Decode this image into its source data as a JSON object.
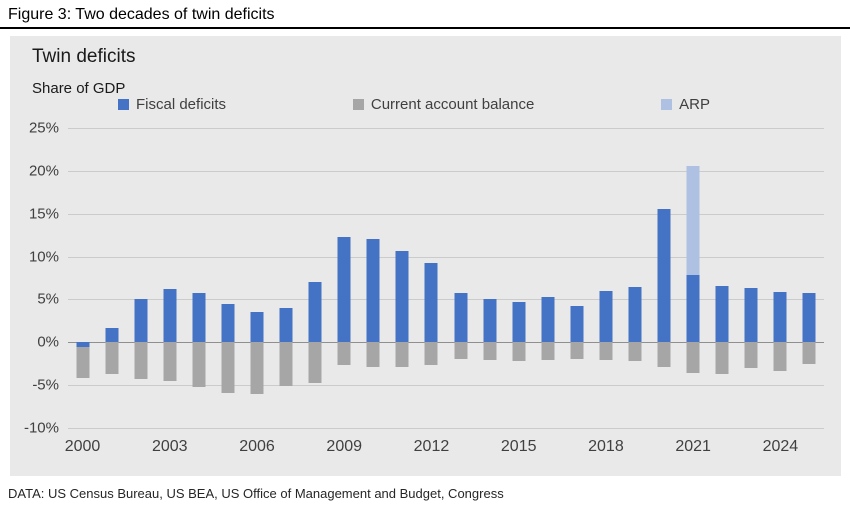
{
  "figure": {
    "caption": "Figure 3: Two decades of twin deficits",
    "source": "DATA: US Census Bureau, US BEA, US Office of Management and Budget, Congress"
  },
  "chart": {
    "title": "Twin deficits",
    "subtitle": "Share of GDP",
    "background": "#e9e9e9",
    "legend": [
      {
        "label": "Fiscal deficits",
        "color": "#4472c4"
      },
      {
        "label": "Current account balance",
        "color": "#a6a6a6"
      },
      {
        "label": "ARP",
        "color": "#aec1e3"
      }
    ]
  },
  "chart_data": {
    "type": "bar",
    "title": "Twin deficits",
    "subtitle": "Share of GDP",
    "xlabel": "",
    "ylabel": "Share of GDP",
    "ylim": [
      -10,
      25
    ],
    "yticks": [
      25,
      20,
      15,
      10,
      5,
      0,
      -5,
      -10
    ],
    "xticks": [
      2000,
      2003,
      2006,
      2009,
      2012,
      2015,
      2018,
      2021,
      2024
    ],
    "grid": true,
    "legend_position": "top",
    "x": [
      2000,
      2001,
      2002,
      2003,
      2004,
      2005,
      2006,
      2007,
      2008,
      2009,
      2010,
      2011,
      2012,
      2013,
      2014,
      2015,
      2016,
      2017,
      2018,
      2019,
      2020,
      2021,
      2022,
      2023,
      2024,
      2025
    ],
    "series": [
      {
        "name": "Fiscal deficits",
        "color": "#4472c4",
        "values": [
          -0.5,
          1.7,
          5.1,
          6.2,
          5.7,
          4.5,
          3.5,
          4.0,
          7.0,
          12.3,
          12.1,
          10.7,
          9.2,
          5.8,
          5.1,
          4.7,
          5.3,
          4.2,
          6.0,
          6.5,
          15.6,
          7.9,
          6.6,
          6.3,
          5.9,
          5.8
        ]
      },
      {
        "name": "Current account balance",
        "color": "#a6a6a6",
        "values": [
          -4.2,
          -3.7,
          -4.3,
          -4.5,
          -5.2,
          -5.9,
          -6.0,
          -5.1,
          -4.7,
          -2.6,
          -2.9,
          -2.9,
          -2.6,
          -2.0,
          -2.1,
          -2.2,
          -2.1,
          -1.9,
          -2.1,
          -2.2,
          -2.9,
          -3.6,
          -3.7,
          -3.0,
          -3.3,
          -2.5
        ]
      },
      {
        "name": "ARP",
        "color": "#aec1e3",
        "values": [
          0,
          0,
          0,
          0,
          0,
          0,
          0,
          0,
          0,
          0,
          0,
          0,
          0,
          0,
          0,
          0,
          0,
          0,
          0,
          0,
          0,
          12.7,
          0,
          0,
          0,
          0
        ]
      }
    ]
  }
}
